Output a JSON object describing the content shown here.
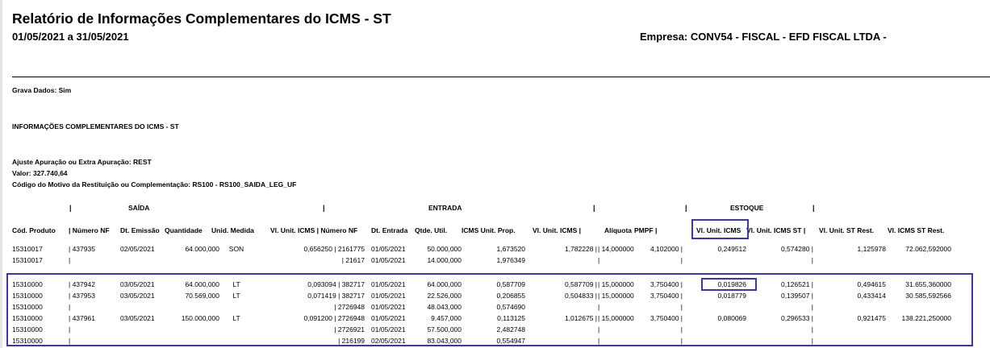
{
  "report": {
    "title": "Relatório de Informações Complementares do ICMS - ST",
    "period": "01/05/2021 a 31/05/2021",
    "company": "Empresa: CONV54 - FISCAL - EFD FISCAL LTDA -",
    "grava_dados": "Grava Dados: Sim",
    "section_title": "INFORMAÇÕES COMPLEMENTARES DO ICMS - ST",
    "ajuste": "Ajuste Apuração ou Extra Apuração: REST",
    "valor": "Valor: 327.740,64",
    "codigo_motivo": "Código do Motivo da Restituição ou Complementação: RS100 - RS100_SAIDA_LEG_UF"
  },
  "groups": {
    "saida": "SAÍDA",
    "entrada": "ENTRADA",
    "estoque": "ESTOQUE"
  },
  "headers": {
    "cod_produto": "Cód. Produto",
    "numero_nf_saida": "| Número NF",
    "dt_emissao": "Dt. Emissão",
    "quantidade": "Quantidade",
    "unid_medida": "Unid. Medida",
    "vl_unit_icms_numero_nf": "Vl. Unit. ICMS | Número NF",
    "dt_entrada": "Dt. Entrada",
    "qtde_util": "Qtde. Util.",
    "icms_unit_prop": "ICMS Unit. Prop.",
    "vl_unit_icms_entrada": "Vl. Unit. ICMS |",
    "aliquota": "Alíquota",
    "pmpf": "PMPF |",
    "vl_unit_icms_estoque": "Vl. Unit. ICMS",
    "vl_unit_icms_st": "Vl. Unit. ICMS ST |",
    "vl_unit_st_rest": "Vl. Unit. ST Rest.",
    "vl_icms_st_rest": "Vl. ICMS ST Rest."
  },
  "rows": [
    {
      "cod": "15310017",
      "nf": "| 437935",
      "emissao": "02/05/2021",
      "qtd": "64.000,000",
      "unid": "SON",
      "vlu": "0,656250 | 2161775",
      "dt_ent": "01/05/2021",
      "qutil": "50.000,000",
      "icms_prop": "1,673520",
      "vlu_ent": "1,782228 |",
      "aliq": "| 14,000000",
      "pmpf": "4,102000 |",
      "vlu_est": "0,249512",
      "vlu_st": "0,574280 |",
      "st_rest": "1,125978",
      "icms_st_rest": "72.062,592000"
    },
    {
      "cod": "15310017",
      "nf": "|",
      "emissao": "",
      "qtd": "",
      "unid": "",
      "vlu": "| 21617",
      "dt_ent": "01/05/2021",
      "qutil": "14.000,000",
      "icms_prop": "1,976349",
      "vlu_ent": "",
      "aliq": "|",
      "pmpf": "|",
      "vlu_est": "",
      "vlu_st": "|",
      "st_rest": "",
      "icms_st_rest": ""
    },
    {
      "cod": "15310000",
      "nf": "| 437942",
      "emissao": "03/05/2021",
      "qtd": "64.000,000",
      "unid": "LT",
      "vlu": "0,093094 | 382717",
      "dt_ent": "01/05/2021",
      "qutil": "64.000,000",
      "icms_prop": "0,587709",
      "vlu_ent": "0,587709 |",
      "aliq": "| 15,000000",
      "pmpf": "3,750400 |",
      "vlu_est": "0,019826",
      "vlu_st": "0,126521 |",
      "st_rest": "0,494615",
      "icms_st_rest": "31.655,360000"
    },
    {
      "cod": "15310000",
      "nf": "| 437953",
      "emissao": "03/05/2021",
      "qtd": "70.569,000",
      "unid": "LT",
      "vlu": "0,071419 | 382717",
      "dt_ent": "01/05/2021",
      "qutil": "22.526,000",
      "icms_prop": "0,206855",
      "vlu_ent": "0,504833 |",
      "aliq": "| 15,000000",
      "pmpf": "3,750400 |",
      "vlu_est": "0,018779",
      "vlu_st": "0,139507 |",
      "st_rest": "0,433414",
      "icms_st_rest": "30.585,592566"
    },
    {
      "cod": "15310000",
      "nf": "|",
      "emissao": "",
      "qtd": "",
      "unid": "",
      "vlu": "| 2726948",
      "dt_ent": "01/05/2021",
      "qutil": "48.043,000",
      "icms_prop": "0,574690",
      "vlu_ent": "",
      "aliq": "|",
      "pmpf": "|",
      "vlu_est": "",
      "vlu_st": "|",
      "st_rest": "",
      "icms_st_rest": ""
    },
    {
      "cod": "15310000",
      "nf": "| 437961",
      "emissao": "03/05/2021",
      "qtd": "150.000,000",
      "unid": "LT",
      "vlu": "0,091200 | 2726948",
      "dt_ent": "01/05/2021",
      "qutil": "9.457,000",
      "icms_prop": "0,113125",
      "vlu_ent": "1,012675 |",
      "aliq": "| 15,000000",
      "pmpf": "3,750400 |",
      "vlu_est": "0,080069",
      "vlu_st": "0,296533 |",
      "st_rest": "0,921475",
      "icms_st_rest": "138.221,250000"
    },
    {
      "cod": "15310000",
      "nf": "|",
      "emissao": "",
      "qtd": "",
      "unid": "",
      "vlu": "| 2726921",
      "dt_ent": "01/05/2021",
      "qutil": "57.500,000",
      "icms_prop": "2,482748",
      "vlu_ent": "",
      "aliq": "|",
      "pmpf": "|",
      "vlu_est": "",
      "vlu_st": "|",
      "st_rest": "",
      "icms_st_rest": ""
    },
    {
      "cod": "15310000",
      "nf": "|",
      "emissao": "",
      "qtd": "",
      "unid": "",
      "vlu": "| 216199",
      "dt_ent": "02/05/2021",
      "qutil": "83.043,000",
      "icms_prop": "0,554947",
      "vlu_ent": "",
      "aliq": "|",
      "pmpf": "|",
      "vlu_est": "",
      "vlu_st": "|",
      "st_rest": "",
      "icms_st_rest": ""
    }
  ],
  "highlight_color": "#3b36b0"
}
